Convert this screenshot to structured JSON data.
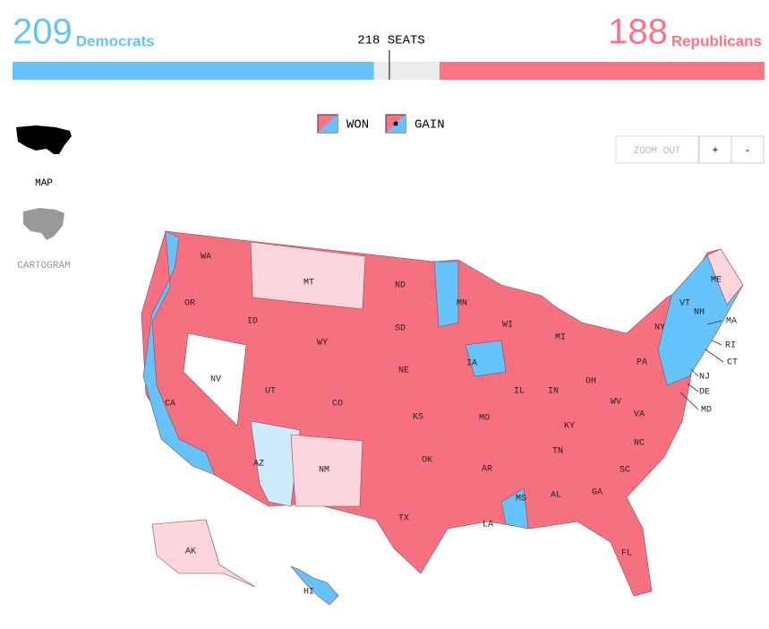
{
  "header": {
    "dem": {
      "count": 209,
      "label": "Democrats",
      "color": "#63c3fa"
    },
    "rep": {
      "count": 188,
      "label": "Republicans",
      "color": "#ff7385"
    },
    "majority": {
      "value": 218,
      "label": "218 SEATS"
    }
  },
  "legend": [
    "WON",
    "GAIN"
  ],
  "controls": {
    "zoom_out": "ZOOM OUT",
    "zoom_in": "+",
    "zoom_minus": "-"
  },
  "views": [
    "MAP",
    "CARTOGRAM"
  ],
  "map": {
    "states": [
      "WA",
      "OR",
      "CA",
      "NV",
      "ID",
      "MT",
      "WY",
      "UT",
      "AZ",
      "CO",
      "NM",
      "ND",
      "SD",
      "NE",
      "KS",
      "OK",
      "TX",
      "MN",
      "IA",
      "MO",
      "AR",
      "LA",
      "WI",
      "IL",
      "MI",
      "IN",
      "OH",
      "KY",
      "TN",
      "MS",
      "AL",
      "GA",
      "FL",
      "SC",
      "NC",
      "VA",
      "WV",
      "PA",
      "NY",
      "VT",
      "NH",
      "ME",
      "MA",
      "RI",
      "CT",
      "NJ",
      "DE",
      "MD",
      "AK",
      "HI"
    ]
  }
}
